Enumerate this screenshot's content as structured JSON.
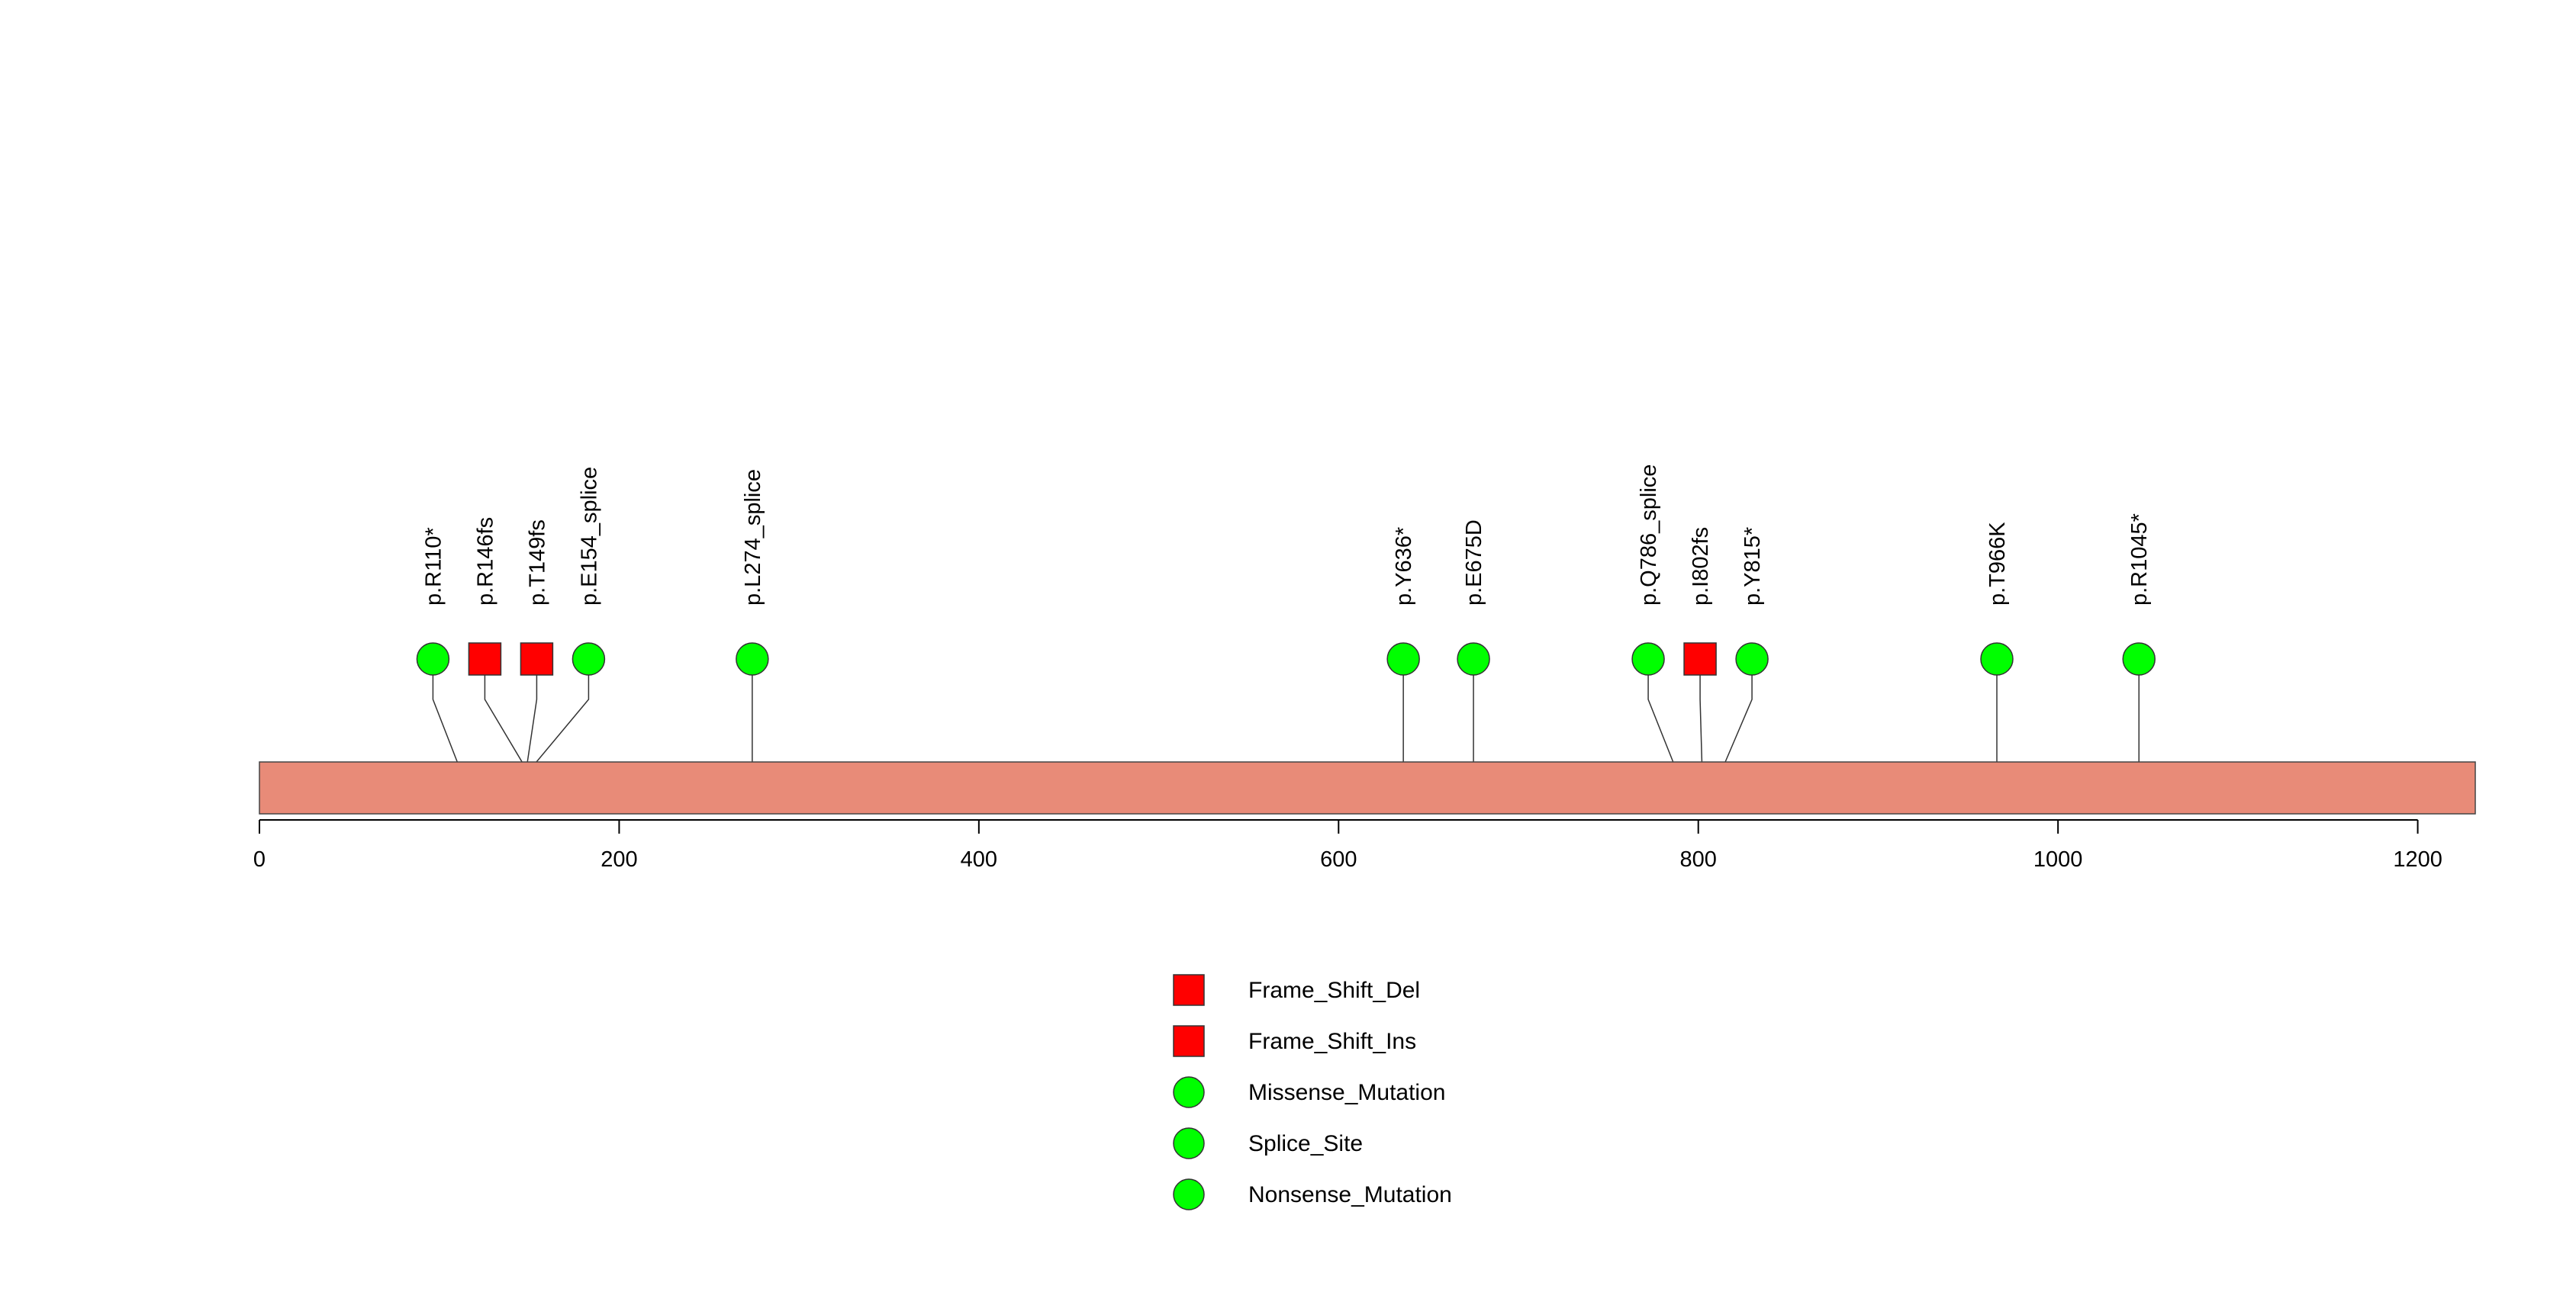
{
  "chart_data": {
    "type": "lollipop",
    "protein_length": 1232,
    "xlim": [
      0,
      1232
    ],
    "x_ticks": [
      0,
      200,
      400,
      600,
      800,
      1000,
      1200
    ],
    "x_tick_labels": [
      "0",
      "200",
      "400",
      "600",
      "800",
      "1000",
      "1200"
    ],
    "bar_color": "#e88b78",
    "mutations": [
      {
        "label": "p.R110*",
        "position": 110,
        "type": "Nonsense_Mutation"
      },
      {
        "label": "p.R146fs",
        "position": 146,
        "type": "Frame_Shift_Del"
      },
      {
        "label": "p.T149fs",
        "position": 149,
        "type": "Frame_Shift_Ins"
      },
      {
        "label": "p.E154_splice",
        "position": 154,
        "type": "Splice_Site"
      },
      {
        "label": "p.L274_splice",
        "position": 274,
        "type": "Splice_Site"
      },
      {
        "label": "p.Y636*",
        "position": 636,
        "type": "Nonsense_Mutation"
      },
      {
        "label": "p.E675D",
        "position": 675,
        "type": "Missense_Mutation"
      },
      {
        "label": "p.Q786_splice",
        "position": 786,
        "type": "Splice_Site"
      },
      {
        "label": "p.I802fs",
        "position": 802,
        "type": "Frame_Shift_Del"
      },
      {
        "label": "p.Y815*",
        "position": 815,
        "type": "Nonsense_Mutation"
      },
      {
        "label": "p.T966K",
        "position": 966,
        "type": "Missense_Mutation"
      },
      {
        "label": "p.R1045*",
        "position": 1045,
        "type": "Nonsense_Mutation"
      }
    ],
    "legend": [
      {
        "label": "Frame_Shift_Del",
        "shape": "square",
        "color": "#ff0000"
      },
      {
        "label": "Frame_Shift_Ins",
        "shape": "square",
        "color": "#ff0000"
      },
      {
        "label": "Missense_Mutation",
        "shape": "circle",
        "color": "#00ff00"
      },
      {
        "label": "Splice_Site",
        "shape": "circle",
        "color": "#00ff00"
      },
      {
        "label": "Nonsense_Mutation",
        "shape": "circle",
        "color": "#00ff00"
      }
    ],
    "legend_position": "bottom-center",
    "type_styles": {
      "Frame_Shift_Del": {
        "shape": "square",
        "color": "#ff0000"
      },
      "Frame_Shift_Ins": {
        "shape": "square",
        "color": "#ff0000"
      },
      "Missense_Mutation": {
        "shape": "circle",
        "color": "#00ff00"
      },
      "Splice_Site": {
        "shape": "circle",
        "color": "#00ff00"
      },
      "Nonsense_Mutation": {
        "shape": "circle",
        "color": "#00ff00"
      }
    }
  }
}
